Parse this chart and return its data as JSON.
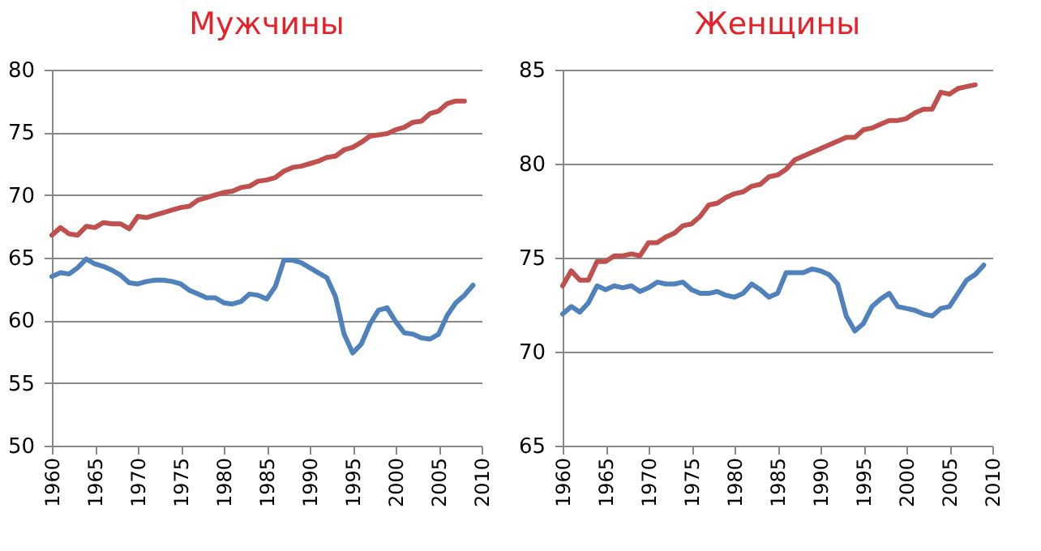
{
  "chart_data": [
    {
      "type": "line",
      "title": "Мужчины",
      "x": [
        1960,
        1961,
        1962,
        1963,
        1964,
        1965,
        1966,
        1967,
        1968,
        1969,
        1970,
        1971,
        1972,
        1973,
        1974,
        1975,
        1976,
        1977,
        1978,
        1979,
        1980,
        1981,
        1982,
        1983,
        1984,
        1985,
        1986,
        1987,
        1988,
        1989,
        1990,
        1991,
        1992,
        1993,
        1994,
        1995,
        1996,
        1997,
        1998,
        1999,
        2000,
        2001,
        2002,
        2003,
        2004,
        2005,
        2006,
        2007,
        2008,
        2009
      ],
      "xlim": [
        1960,
        2010
      ],
      "xticks": [
        1960,
        1965,
        1970,
        1975,
        1980,
        1985,
        1990,
        1995,
        2000,
        2005,
        2010
      ],
      "ylim": [
        50,
        80
      ],
      "yticks": [
        50,
        55,
        60,
        65,
        70,
        75,
        80
      ],
      "grid": "y",
      "marker": "none",
      "line_style": "solid",
      "series": [
        {
          "color": "#c0504d",
          "values": [
            66.8,
            67.4,
            66.9,
            66.8,
            67.5,
            67.4,
            67.8,
            67.7,
            67.7,
            67.3,
            68.3,
            68.2,
            68.4,
            68.6,
            68.8,
            69.0,
            69.1,
            69.6,
            69.8,
            70.0,
            70.2,
            70.3,
            70.6,
            70.7,
            71.1,
            71.2,
            71.4,
            71.9,
            72.2,
            72.3,
            72.5,
            72.7,
            73.0,
            73.1,
            73.6,
            73.8,
            74.2,
            74.7,
            74.8,
            74.9,
            75.2,
            75.4,
            75.8,
            75.9,
            76.5,
            76.7,
            77.3,
            77.5,
            77.5,
            null
          ]
        },
        {
          "color": "#4f81bd",
          "values": [
            63.5,
            63.8,
            63.7,
            64.2,
            64.9,
            64.5,
            64.3,
            64.0,
            63.6,
            63.0,
            62.9,
            63.1,
            63.2,
            63.2,
            63.1,
            62.9,
            62.4,
            62.1,
            61.8,
            61.8,
            61.4,
            61.3,
            61.5,
            62.1,
            62.0,
            61.7,
            62.7,
            64.8,
            64.8,
            64.6,
            64.2,
            63.8,
            63.4,
            61.9,
            58.9,
            57.4,
            58.1,
            59.7,
            60.8,
            61.0,
            59.9,
            59.0,
            58.9,
            58.6,
            58.5,
            58.9,
            60.4,
            61.4,
            62.0,
            62.8
          ]
        }
      ]
    },
    {
      "type": "line",
      "title": "Женщины",
      "x": [
        1960,
        1961,
        1962,
        1963,
        1964,
        1965,
        1966,
        1967,
        1968,
        1969,
        1970,
        1971,
        1972,
        1973,
        1974,
        1975,
        1976,
        1977,
        1978,
        1979,
        1980,
        1981,
        1982,
        1983,
        1984,
        1985,
        1986,
        1987,
        1988,
        1989,
        1990,
        1991,
        1992,
        1993,
        1994,
        1995,
        1996,
        1997,
        1998,
        1999,
        2000,
        2001,
        2002,
        2003,
        2004,
        2005,
        2006,
        2007,
        2008,
        2009
      ],
      "xlim": [
        1960,
        2010
      ],
      "xticks": [
        1960,
        1965,
        1970,
        1975,
        1980,
        1985,
        1990,
        1995,
        2000,
        2005,
        2010
      ],
      "ylim": [
        65,
        85
      ],
      "yticks": [
        65,
        70,
        75,
        80,
        85
      ],
      "grid": "y",
      "marker": "none",
      "line_style": "solid",
      "series": [
        {
          "color": "#c0504d",
          "values": [
            73.5,
            74.3,
            73.8,
            73.8,
            74.8,
            74.8,
            75.1,
            75.1,
            75.2,
            75.1,
            75.8,
            75.8,
            76.1,
            76.3,
            76.7,
            76.8,
            77.2,
            77.8,
            77.9,
            78.2,
            78.4,
            78.5,
            78.8,
            78.9,
            79.3,
            79.4,
            79.7,
            80.2,
            80.4,
            80.6,
            80.8,
            81.0,
            81.2,
            81.4,
            81.4,
            81.8,
            81.9,
            82.1,
            82.3,
            82.3,
            82.4,
            82.7,
            82.9,
            82.9,
            83.8,
            83.7,
            84.0,
            84.1,
            84.2,
            null
          ]
        },
        {
          "color": "#4f81bd",
          "values": [
            72.0,
            72.4,
            72.1,
            72.6,
            73.5,
            73.3,
            73.5,
            73.4,
            73.5,
            73.2,
            73.4,
            73.7,
            73.6,
            73.6,
            73.7,
            73.3,
            73.1,
            73.1,
            73.2,
            73.0,
            72.9,
            73.1,
            73.6,
            73.3,
            72.9,
            73.1,
            74.2,
            74.2,
            74.2,
            74.4,
            74.3,
            74.1,
            73.6,
            71.9,
            71.1,
            71.5,
            72.4,
            72.8,
            73.1,
            72.4,
            72.3,
            72.2,
            72.0,
            71.9,
            72.3,
            72.4,
            73.1,
            73.8,
            74.1,
            74.6
          ]
        }
      ]
    }
  ]
}
